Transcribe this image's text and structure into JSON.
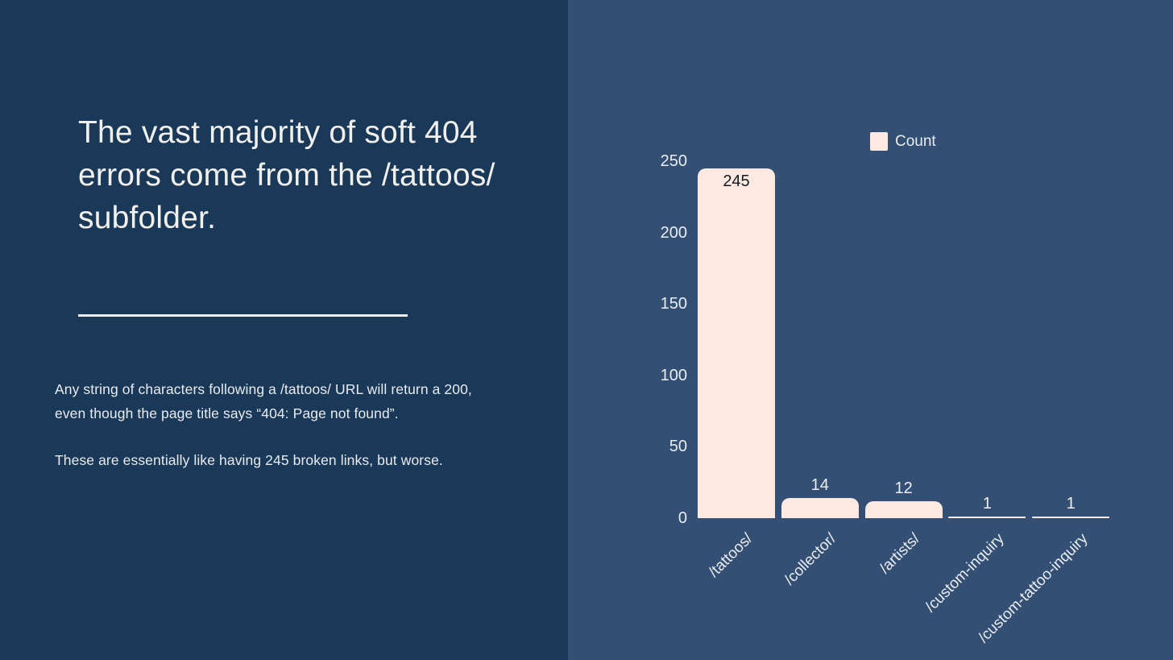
{
  "theme": {
    "left_bg": "#1A3958",
    "right_bg": "#334F73",
    "heading_color": "#F2F0ED",
    "body_color": "#E8EBEE",
    "divider_color": "#EDEEEC",
    "tick_color": "#E9EDF1",
    "bar_color": "#FBE9E2",
    "value_label_inside_color": "#161B21",
    "value_label_outside_color": "#EDEFF2"
  },
  "left_panel": {
    "heading_lines": [
      "The vast majority of",
      "soft 404 errors come",
      "from the /tattoos/",
      "subfolder."
    ],
    "paragraph1_lines": [
      "Any string of characters following a /tattoos/ URL will return a 200,",
      "even though the page title says “404: Page not found”."
    ],
    "paragraph2": "These are essentially like having 245 broken links, but worse."
  },
  "chart_data": {
    "type": "bar",
    "title": "",
    "xlabel": "",
    "ylabel": "",
    "categories": [
      "/tattoos/",
      "/collector/",
      "/artists/",
      "/custom-inquiry",
      "/custom-tattoo-inquiry"
    ],
    "values": [
      245,
      14,
      12,
      1,
      1
    ],
    "value_labels": [
      "245",
      "14",
      "12",
      "1",
      "1"
    ],
    "legend": {
      "label": "Count",
      "position": "top"
    },
    "yticks": [
      0,
      50,
      100,
      150,
      200,
      250
    ],
    "ylim": [
      0,
      250
    ],
    "grid": false,
    "x_tick_rotation_deg": 45
  }
}
